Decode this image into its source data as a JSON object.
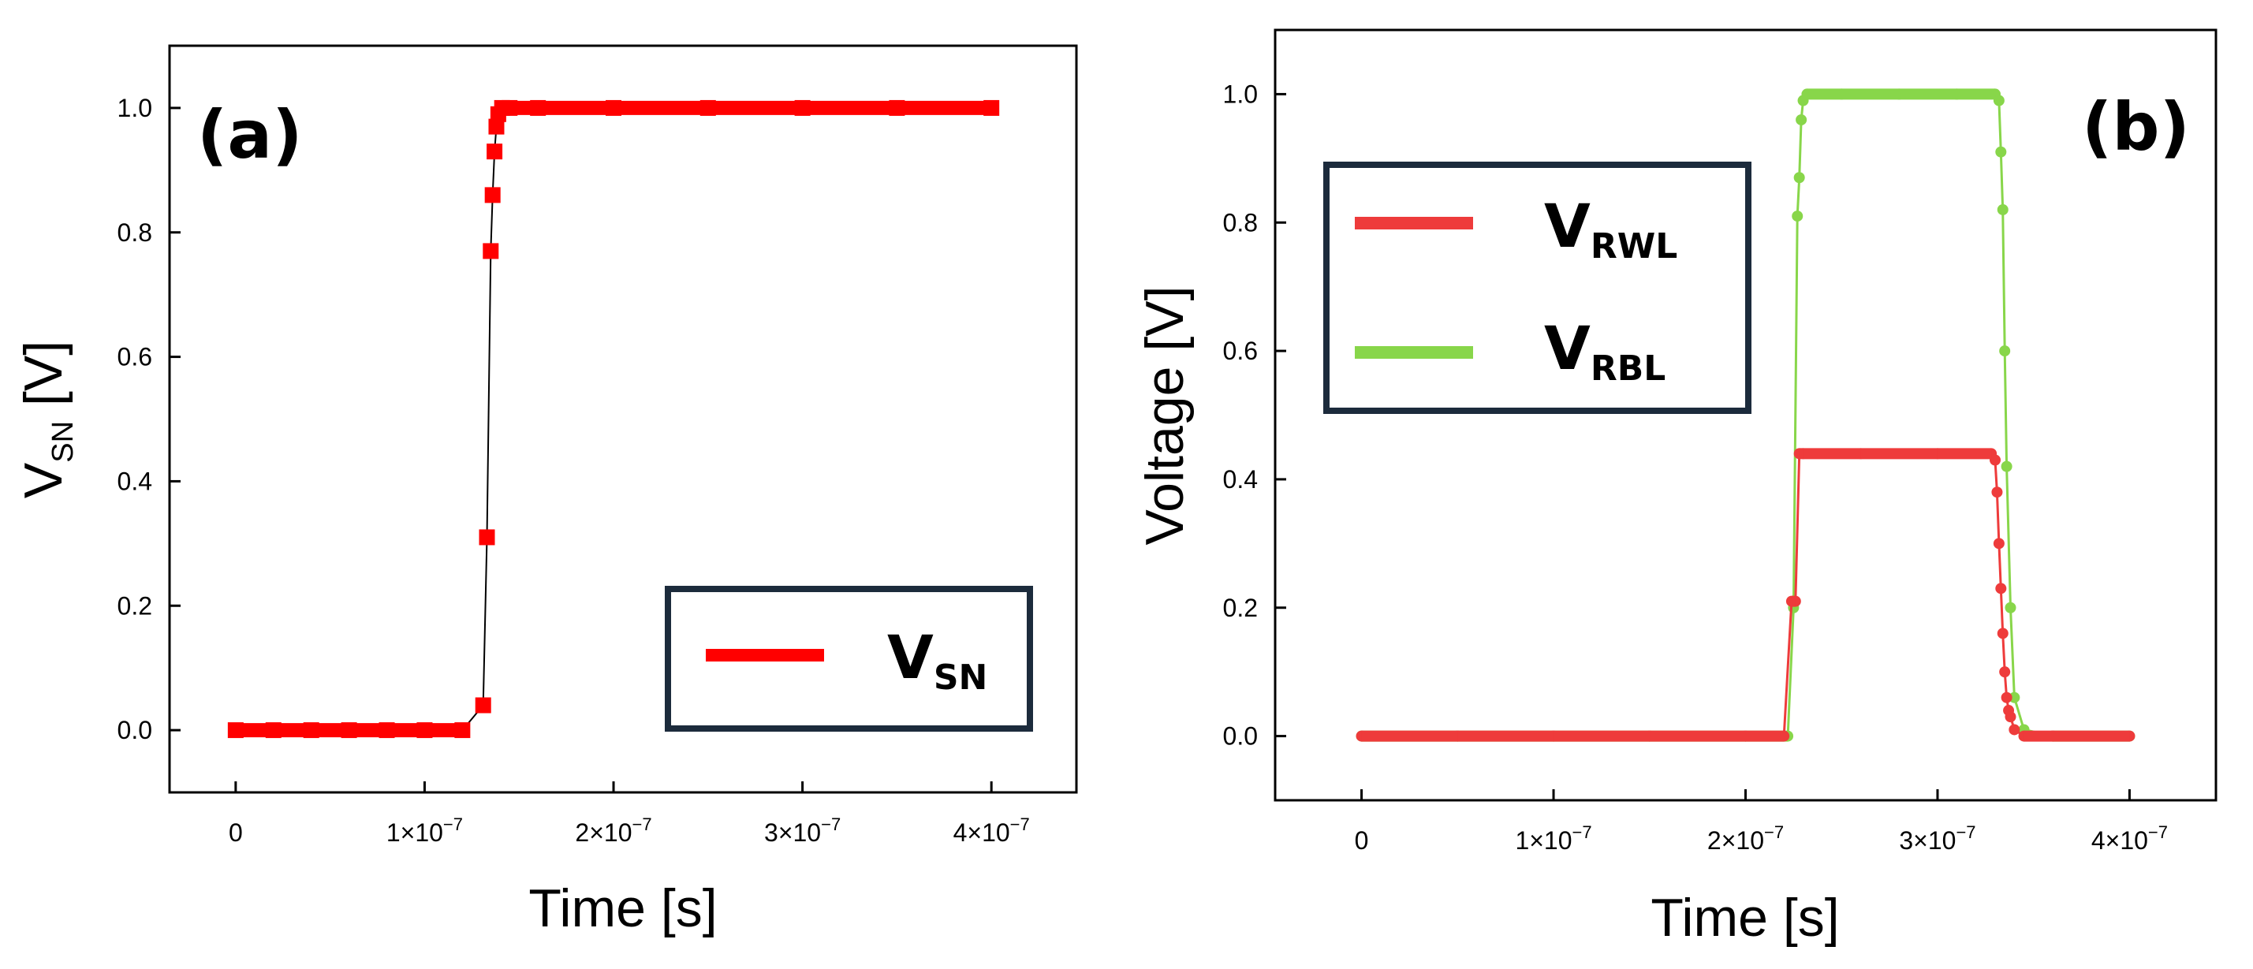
{
  "chart_data": [
    {
      "id": "a",
      "type": "scatter",
      "panel_label": "(a)",
      "xlabel": "Time [s]",
      "ylabel_main": "V",
      "ylabel_sub": "SN",
      "ylabel_unit": " [V]",
      "xlim": [
        -3.5e-08,
        4.45e-07
      ],
      "ylim": [
        -0.1,
        1.1
      ],
      "xticks": [
        {
          "value": 0,
          "label": "0"
        },
        {
          "value": 1e-07,
          "base": "1×10",
          "exp": "−7"
        },
        {
          "value": 2e-07,
          "base": "2×10",
          "exp": "−7"
        },
        {
          "value": 3e-07,
          "base": "3×10",
          "exp": "−7"
        },
        {
          "value": 4e-07,
          "base": "4×10",
          "exp": "−7"
        }
      ],
      "yticks": [
        "0.0",
        "0.2",
        "0.4",
        "0.6",
        "0.8",
        "1.0"
      ],
      "legend": {
        "position": "bottom-right",
        "entries": [
          {
            "main": "V",
            "sub": "SN",
            "color": "#ff0000"
          }
        ]
      },
      "series": [
        {
          "name": "VSN",
          "color": "#ff0000",
          "x": [
            0,
            2e-08,
            4e-08,
            6e-08,
            8e-08,
            1e-07,
            1.2e-07,
            1.31e-07,
            1.33e-07,
            1.35e-07,
            1.36e-07,
            1.37e-07,
            1.38e-07,
            1.39e-07,
            1.41e-07,
            1.45e-07,
            1.6e-07,
            2e-07,
            2.5e-07,
            3e-07,
            3.5e-07,
            4e-07
          ],
          "values": [
            0,
            0,
            0,
            0,
            0,
            0,
            0,
            0.04,
            0.31,
            0.77,
            0.86,
            0.93,
            0.97,
            0.99,
            1.0,
            1.0,
            1.0,
            1.0,
            1.0,
            1.0,
            1.0,
            1.0
          ]
        }
      ]
    },
    {
      "id": "b",
      "type": "scatter",
      "panel_label": "(b)",
      "xlabel": "Time [s]",
      "ylabel": "Voltage [V]",
      "xlim": [
        -4.5e-08,
        4.45e-07
      ],
      "ylim": [
        -0.1,
        1.1
      ],
      "xticks": [
        {
          "value": 0,
          "label": "0"
        },
        {
          "value": 1e-07,
          "base": "1×10",
          "exp": "−7"
        },
        {
          "value": 2e-07,
          "base": "2×10",
          "exp": "−7"
        },
        {
          "value": 3e-07,
          "base": "3×10",
          "exp": "−7"
        },
        {
          "value": 4e-07,
          "base": "4×10",
          "exp": "−7"
        }
      ],
      "yticks": [
        "0.0",
        "0.2",
        "0.4",
        "0.6",
        "0.8",
        "1.0"
      ],
      "legend": {
        "position": "top-left",
        "entries": [
          {
            "main": "V",
            "sub": "RWL",
            "color": "#ee3b3b"
          },
          {
            "main": "V",
            "sub": "RBL",
            "color": "#88d64a"
          }
        ]
      },
      "series": [
        {
          "name": "VRBL",
          "color": "#88d64a",
          "x": [
            0,
            5e-08,
            1e-07,
            1.5e-07,
            2e-07,
            2.22e-07,
            2.25e-07,
            2.27e-07,
            2.28e-07,
            2.29e-07,
            2.3e-07,
            2.32e-07,
            2.5e-07,
            2.8e-07,
            3.1e-07,
            3.3e-07,
            3.32e-07,
            3.33e-07,
            3.34e-07,
            3.35e-07,
            3.36e-07,
            3.38e-07,
            3.4e-07,
            3.45e-07,
            3.6e-07,
            4e-07
          ],
          "values": [
            0,
            0,
            0,
            0,
            0,
            0,
            0.2,
            0.81,
            0.87,
            0.96,
            0.99,
            1.0,
            1.0,
            1.0,
            1.0,
            1.0,
            0.99,
            0.91,
            0.82,
            0.6,
            0.42,
            0.2,
            0.06,
            0.01,
            0,
            0
          ]
        },
        {
          "name": "VRWL",
          "color": "#ee3b3b",
          "x": [
            0,
            5e-08,
            1e-07,
            1.5e-07,
            2e-07,
            2.2e-07,
            2.24e-07,
            2.26e-07,
            2.28e-07,
            2.3e-07,
            2.6e-07,
            3e-07,
            3.28e-07,
            3.3e-07,
            3.31e-07,
            3.32e-07,
            3.33e-07,
            3.34e-07,
            3.35e-07,
            3.36e-07,
            3.37e-07,
            3.38e-07,
            3.4e-07,
            3.45e-07,
            3.6e-07,
            4e-07
          ],
          "values": [
            0,
            0,
            0,
            0,
            0,
            0,
            0.21,
            0.21,
            0.44,
            0.44,
            0.44,
            0.44,
            0.44,
            0.43,
            0.38,
            0.3,
            0.23,
            0.16,
            0.1,
            0.06,
            0.04,
            0.03,
            0.01,
            0,
            0,
            0
          ]
        }
      ]
    }
  ]
}
